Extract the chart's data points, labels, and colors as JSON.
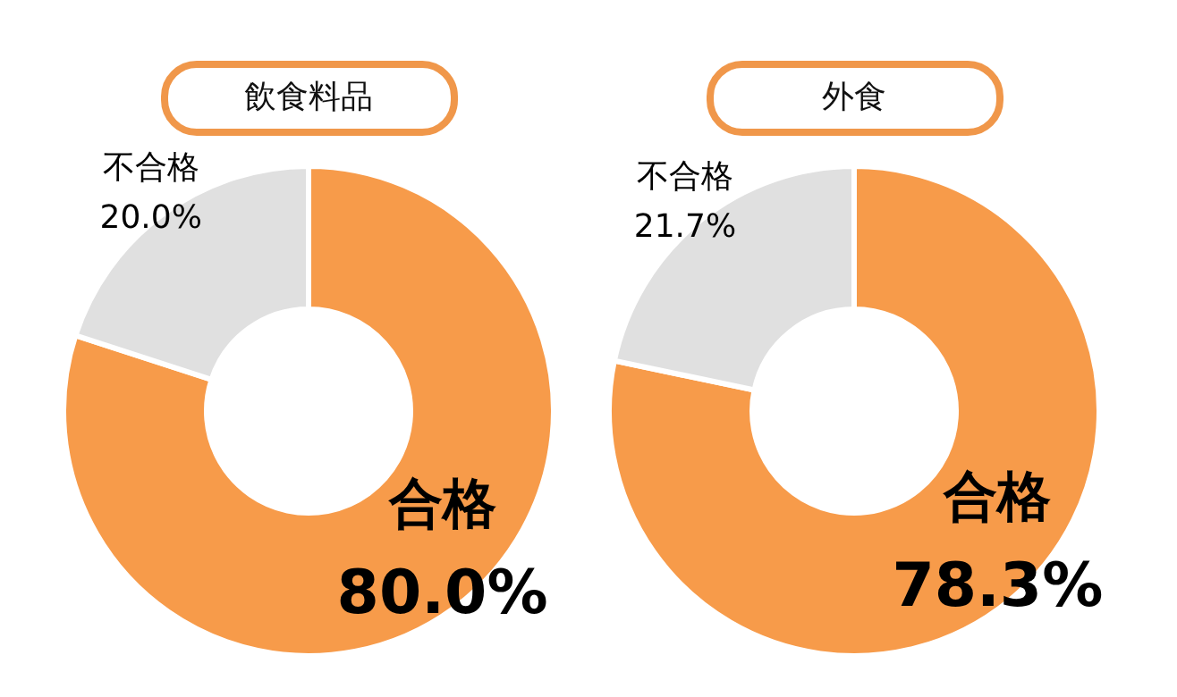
{
  "chart_data": [
    {
      "type": "donut",
      "title": "飲食料品",
      "categories": [
        "合格",
        "不合格"
      ],
      "values": [
        80.0,
        20.0
      ],
      "colors": [
        "#f79b4a",
        "#e0e0e0"
      ],
      "value_labels": [
        "80.0%",
        "20.0%"
      ]
    },
    {
      "type": "donut",
      "title": "外食",
      "categories": [
        "合格",
        "不合格"
      ],
      "values": [
        78.3,
        21.7
      ],
      "colors": [
        "#f79b4a",
        "#e0e0e0"
      ],
      "value_labels": [
        "78.3%",
        "21.7%"
      ]
    }
  ]
}
